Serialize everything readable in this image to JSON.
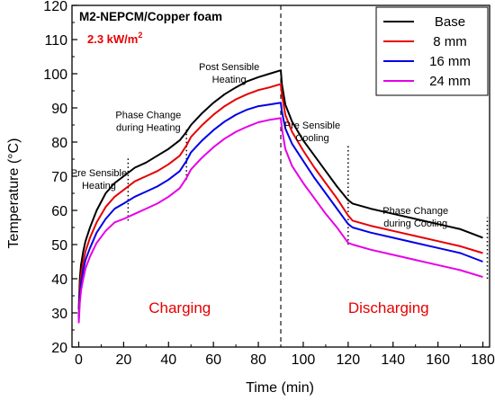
{
  "chart_data": {
    "type": "line",
    "title": "M2-NEPCM/Copper foam",
    "subtitle": "2.3 kW/m",
    "subtitle_sup": "2",
    "xlabel": "Time (min)",
    "ylabel": "Temperature (°C)",
    "xlim": [
      -3,
      183
    ],
    "ylim": [
      20,
      120
    ],
    "xticks": [
      0,
      20,
      40,
      60,
      80,
      100,
      120,
      140,
      160,
      180
    ],
    "yticks": [
      20,
      30,
      40,
      50,
      60,
      70,
      80,
      90,
      100,
      110,
      120
    ],
    "grid": false,
    "legend_position": "top-right",
    "colors": {
      "title": "#000000",
      "subtitle": "#e60000",
      "phase_text": "#e60000"
    },
    "series": [
      {
        "name": "Base",
        "color": "#000000",
        "x": [
          0,
          0.5,
          1,
          2,
          3,
          5,
          8,
          12,
          16,
          20,
          25,
          30,
          35,
          40,
          45,
          48,
          50,
          55,
          60,
          65,
          70,
          75,
          80,
          85,
          90,
          90.5,
          92,
          95,
          100,
          105,
          110,
          115,
          120,
          122,
          130,
          140,
          150,
          160,
          170,
          180
        ],
        "y": [
          31,
          40,
          44,
          48,
          51,
          55,
          60,
          65,
          68,
          70,
          72.5,
          74,
          76,
          78,
          80.5,
          83,
          85,
          88.5,
          91.5,
          94,
          96,
          97.8,
          99,
          100,
          101,
          97,
          91,
          86,
          80.5,
          76,
          71.5,
          67,
          63,
          62,
          60.5,
          59,
          57.5,
          56,
          54.5,
          52
        ]
      },
      {
        "name": "8 mm",
        "color": "#e60000",
        "x": [
          0,
          0.5,
          1,
          2,
          3,
          5,
          8,
          12,
          16,
          20,
          25,
          30,
          35,
          40,
          45,
          48,
          50,
          55,
          60,
          65,
          70,
          75,
          80,
          85,
          90,
          90.5,
          92,
          95,
          100,
          105,
          110,
          115,
          120,
          122,
          130,
          140,
          150,
          160,
          170,
          180
        ],
        "y": [
          29,
          37,
          41,
          45,
          48,
          52,
          56.5,
          61,
          64,
          66,
          68.5,
          70,
          71.5,
          73.5,
          76,
          79,
          81.5,
          85,
          88,
          90.5,
          92.5,
          94,
          95.2,
          96,
          97,
          94,
          88,
          83,
          77.5,
          72.5,
          68,
          63.5,
          58.5,
          57,
          55.5,
          54,
          52.5,
          51,
          49.5,
          47.5
        ]
      },
      {
        "name": "16 mm",
        "color": "#0000e6",
        "x": [
          0,
          0.5,
          1,
          2,
          3,
          5,
          8,
          12,
          16,
          20,
          25,
          30,
          35,
          40,
          45,
          48,
          50,
          55,
          60,
          65,
          70,
          75,
          80,
          85,
          90,
          90.5,
          92,
          95,
          100,
          105,
          110,
          115,
          120,
          122,
          130,
          140,
          150,
          160,
          170,
          180
        ],
        "y": [
          28,
          35,
          38.5,
          42.5,
          45.5,
          49,
          53.5,
          57.5,
          60.5,
          62,
          64,
          65.5,
          67,
          69,
          71.5,
          74.5,
          77,
          80.5,
          83.5,
          86,
          88,
          89.5,
          90.5,
          91,
          91.5,
          89,
          84,
          79.5,
          74.5,
          69.5,
          65,
          60.5,
          56,
          55,
          53.5,
          52,
          50.5,
          49,
          47.5,
          45
        ]
      },
      {
        "name": "24 mm",
        "color": "#e600e6",
        "x": [
          0,
          0.5,
          1,
          2,
          3,
          5,
          8,
          12,
          16,
          20,
          25,
          30,
          35,
          40,
          45,
          48,
          50,
          55,
          60,
          65,
          70,
          75,
          80,
          85,
          90,
          90.5,
          92,
          95,
          100,
          105,
          110,
          115,
          120,
          122,
          130,
          140,
          150,
          160,
          170,
          180
        ],
        "y": [
          27,
          33,
          36.5,
          40,
          43,
          46.5,
          50.5,
          54,
          56.5,
          57.5,
          59,
          60.5,
          62,
          64,
          66.5,
          69.5,
          72,
          75.5,
          78.5,
          81,
          83,
          84.5,
          85.8,
          86.5,
          87,
          84,
          78,
          73,
          68,
          63.5,
          59,
          55,
          50.5,
          50,
          48.5,
          47,
          45.5,
          44,
          42.5,
          40.5
        ]
      }
    ],
    "annotations": [
      {
        "lines": [
          "Pre Sensible",
          "Heating"
        ],
        "x": 9,
        "y": 70
      },
      {
        "lines": [
          "Phase Change",
          "during Heating"
        ],
        "x": 31,
        "y": 87
      },
      {
        "lines": [
          "Post Sensible",
          "Heating"
        ],
        "x": 67,
        "y": 101
      },
      {
        "lines": [
          "Pre Sensible",
          "Cooling"
        ],
        "x": 104,
        "y": 84
      },
      {
        "lines": [
          "Phase Change",
          "during Cooling"
        ],
        "x": 150,
        "y": 59
      }
    ],
    "phase_labels": [
      {
        "text": "Charging",
        "x": 45,
        "y": 30
      },
      {
        "text": "Discharging",
        "x": 138,
        "y": 30
      }
    ],
    "dotted_markers": [
      {
        "x": 22,
        "y1": 57,
        "y2": 76
      },
      {
        "x": 48,
        "y1": 69,
        "y2": 84
      },
      {
        "x": 120,
        "y1": 50,
        "y2": 79
      },
      {
        "x": 182,
        "y1": 40,
        "y2": 58
      }
    ],
    "dashed_marker": {
      "x": 90
    }
  }
}
